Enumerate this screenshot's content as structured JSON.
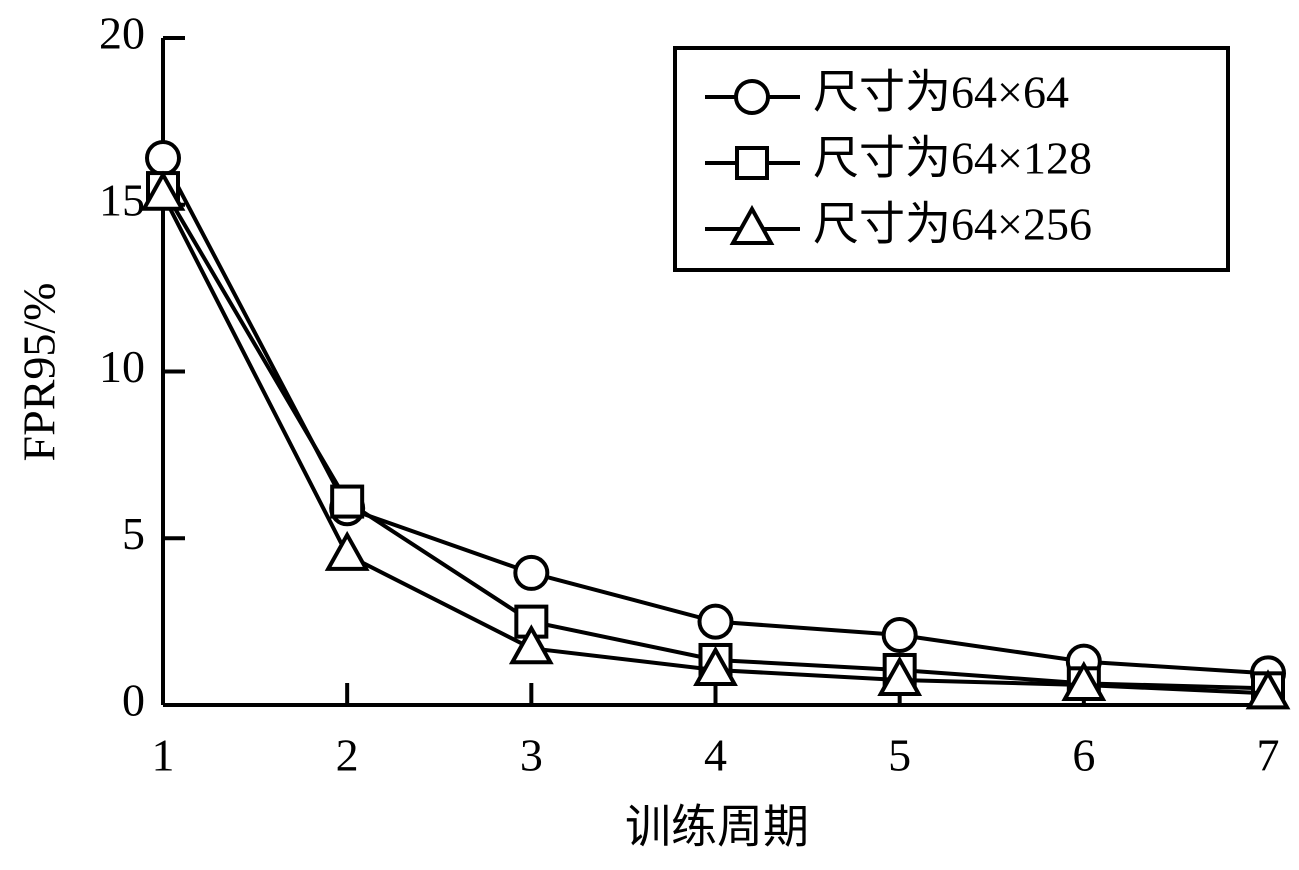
{
  "chart_data": {
    "type": "line",
    "x_label": "训练周期",
    "y_label": "FPR95/%",
    "x": [
      1,
      2,
      3,
      4,
      5,
      6,
      7
    ],
    "xlim": [
      1,
      7
    ],
    "xticks": [
      1,
      2,
      3,
      4,
      5,
      6,
      7
    ],
    "ylim": [
      0,
      20
    ],
    "yticks": [
      0,
      5,
      10,
      15,
      20
    ],
    "legend": "upper right",
    "series": [
      {
        "name": "尺寸为64×64",
        "color": "#000000",
        "marker": "circle",
        "values": [
          16.4,
          5.9,
          3.96,
          2.5,
          2.1,
          1.3,
          0.95
        ]
      },
      {
        "name": "尺寸为64×128",
        "color": "#000000",
        "marker": "square",
        "values": [
          15.5,
          6.1,
          2.5,
          1.35,
          1.05,
          0.65,
          0.5
        ]
      },
      {
        "name": "尺寸为64×256",
        "color": "#000000",
        "marker": "triangle",
        "values": [
          15.3,
          4.5,
          1.7,
          1.05,
          0.75,
          0.6,
          0.35
        ]
      }
    ]
  }
}
